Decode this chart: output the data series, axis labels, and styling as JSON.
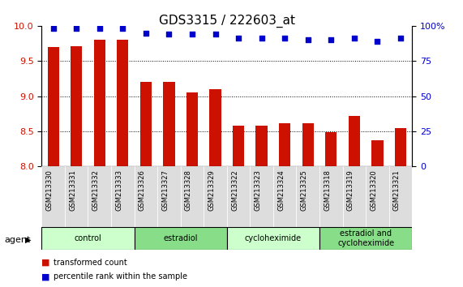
{
  "title": "GDS3315 / 222603_at",
  "samples": [
    "GSM213330",
    "GSM213331",
    "GSM213332",
    "GSM213333",
    "GSM213326",
    "GSM213327",
    "GSM213328",
    "GSM213329",
    "GSM213322",
    "GSM213323",
    "GSM213324",
    "GSM213325",
    "GSM213318",
    "GSM213319",
    "GSM213320",
    "GSM213321"
  ],
  "bar_values": [
    9.7,
    9.71,
    9.8,
    9.8,
    9.2,
    9.2,
    9.05,
    9.1,
    8.58,
    8.58,
    8.62,
    8.62,
    8.49,
    8.72,
    8.37,
    8.55
  ],
  "dot_values": [
    98,
    98,
    98,
    98,
    95,
    94,
    94,
    94,
    91,
    91,
    91,
    90,
    90,
    91,
    89,
    91
  ],
  "bar_color": "#cc1100",
  "dot_color": "#0000cc",
  "ylim_left": [
    8.0,
    10.0
  ],
  "ylim_right": [
    0,
    100
  ],
  "yticks_left": [
    8.0,
    8.5,
    9.0,
    9.5,
    10.0
  ],
  "yticks_right": [
    0,
    25,
    50,
    75,
    100
  ],
  "yticklabels_right": [
    "0",
    "25",
    "50",
    "75",
    "100%"
  ],
  "grid_values": [
    8.5,
    9.0,
    9.5
  ],
  "groups": [
    {
      "label": "control",
      "start": 0,
      "end": 3,
      "color": "#ccffcc"
    },
    {
      "label": "estradiol",
      "start": 4,
      "end": 7,
      "color": "#88dd88"
    },
    {
      "label": "cycloheximide",
      "start": 8,
      "end": 11,
      "color": "#ccffcc"
    },
    {
      "label": "estradiol and\ncycloheximide",
      "start": 12,
      "end": 15,
      "color": "#88dd88"
    }
  ],
  "legend_items": [
    {
      "label": "transformed count",
      "color": "#cc1100"
    },
    {
      "label": "percentile rank within the sample",
      "color": "#0000cc"
    }
  ],
  "agent_label": "agent",
  "tick_fontsize": 8,
  "label_fontsize": 7,
  "title_fontsize": 11,
  "bar_width": 0.5,
  "dot_size": 25
}
